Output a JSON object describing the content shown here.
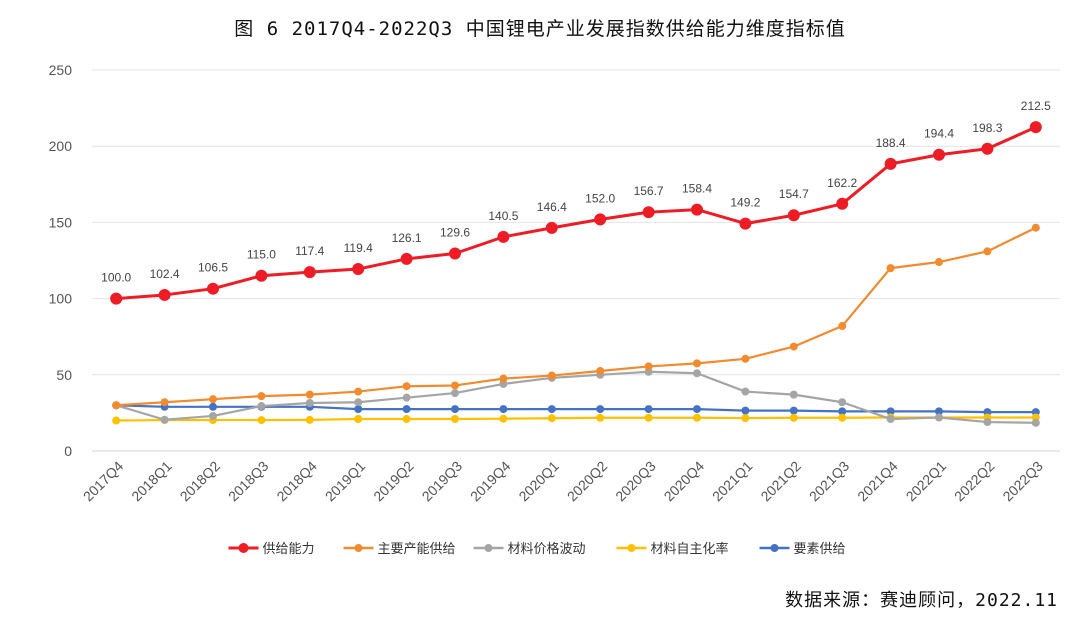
{
  "title": "图 6  2017Q4-2022Q3 中国锂电产业发展指数供给能力维度指标值",
  "source": "数据来源：赛迪顾问，2022.11",
  "chart_data": {
    "type": "line",
    "categories": [
      "2017Q4",
      "2018Q1",
      "2018Q2",
      "2018Q3",
      "2018Q4",
      "2019Q1",
      "2019Q2",
      "2019Q3",
      "2019Q4",
      "2020Q1",
      "2020Q2",
      "2020Q3",
      "2020Q4",
      "2021Q1",
      "2021Q2",
      "2021Q3",
      "2021Q4",
      "2022Q1",
      "2022Q2",
      "2022Q3"
    ],
    "ylim": [
      0,
      250
    ],
    "yticks": [
      0,
      50,
      100,
      150,
      200,
      250
    ],
    "grid": true,
    "legend_position": "bottom",
    "series": [
      {
        "name": "供给能力",
        "color": "#ee1c25",
        "labels": true,
        "values": [
          100.0,
          102.4,
          106.5,
          115.0,
          117.4,
          119.4,
          126.1,
          129.6,
          140.5,
          146.4,
          152.0,
          156.7,
          158.4,
          149.2,
          154.7,
          162.2,
          188.4,
          194.4,
          198.3,
          212.5
        ]
      },
      {
        "name": "主要产能供给",
        "color": "#f28a2e",
        "labels": false,
        "values": [
          30,
          32,
          34,
          36,
          37,
          39,
          42.5,
          43,
          47.5,
          49.5,
          52.5,
          55.5,
          57.5,
          60.5,
          68.5,
          82,
          120,
          124,
          131,
          146.5
        ]
      },
      {
        "name": "材料价格波动",
        "color": "#a5a5a5",
        "labels": false,
        "values": [
          30,
          20.5,
          23,
          29.5,
          31.5,
          32,
          35,
          38,
          44,
          48,
          50,
          52,
          51,
          39,
          37,
          32,
          21,
          22,
          19,
          18.5
        ]
      },
      {
        "name": "材料自主化率",
        "color": "#ffc000",
        "labels": false,
        "values": [
          20,
          20.3,
          20.3,
          20.3,
          20.4,
          21,
          21,
          21,
          21.2,
          21.5,
          21.8,
          21.8,
          21.8,
          21.6,
          21.8,
          21.8,
          22,
          22,
          22,
          22
        ]
      },
      {
        "name": "要素供给",
        "color": "#4472c4",
        "labels": false,
        "values": [
          30,
          29,
          29,
          29,
          29,
          27.5,
          27.5,
          27.5,
          27.5,
          27.5,
          27.5,
          27.5,
          27.5,
          26.5,
          26.5,
          26,
          26,
          26,
          25.5,
          25.5
        ]
      }
    ]
  }
}
